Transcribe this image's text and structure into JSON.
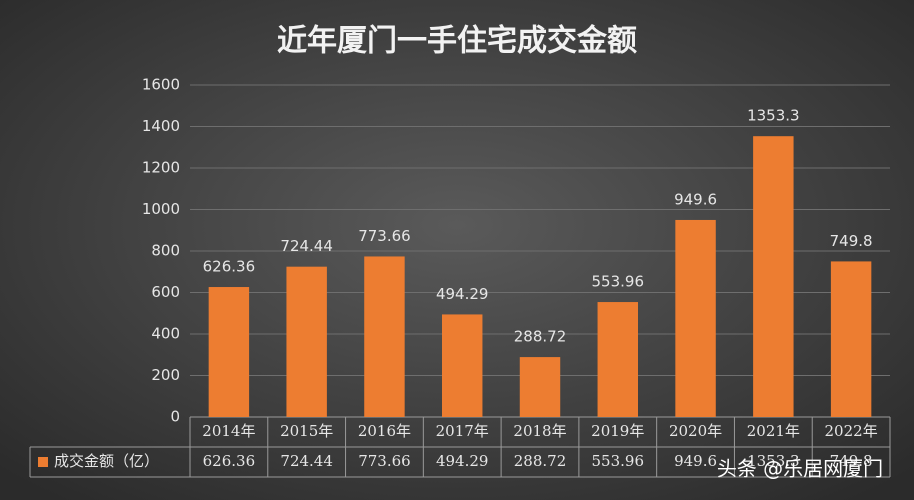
{
  "chart_data": {
    "type": "bar",
    "title": "近年厦门一手住宅成交金额",
    "categories": [
      "2014年",
      "2015年",
      "2016年",
      "2017年",
      "2018年",
      "2019年",
      "2020年",
      "2021年",
      "2022年"
    ],
    "series": [
      {
        "name": "成交金额（亿）",
        "color": "#ed7d31",
        "values": [
          626.36,
          724.44,
          773.66,
          494.29,
          288.72,
          553.96,
          949.6,
          1353.3,
          749.8
        ]
      }
    ],
    "ylim": [
      0,
      1600
    ],
    "yticks": [
      0,
      200,
      400,
      600,
      800,
      1000,
      1200,
      1400,
      1600
    ],
    "grid": true,
    "data_table": true,
    "watermark": "头条 @乐居网厦门"
  }
}
